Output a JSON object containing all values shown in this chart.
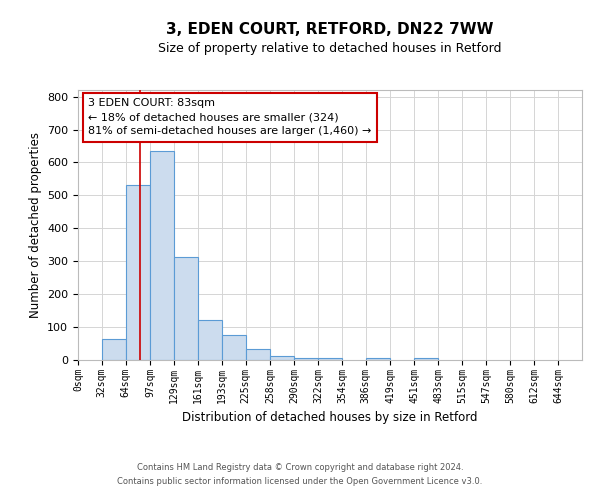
{
  "title": "3, EDEN COURT, RETFORD, DN22 7WW",
  "subtitle": "Size of property relative to detached houses in Retford",
  "xlabel": "Distribution of detached houses by size in Retford",
  "ylabel": "Number of detached properties",
  "bin_labels": [
    "0sqm",
    "32sqm",
    "64sqm",
    "97sqm",
    "129sqm",
    "161sqm",
    "193sqm",
    "225sqm",
    "258sqm",
    "290sqm",
    "322sqm",
    "354sqm",
    "386sqm",
    "419sqm",
    "451sqm",
    "483sqm",
    "515sqm",
    "547sqm",
    "580sqm",
    "612sqm",
    "644sqm"
  ],
  "bar_heights": [
    0,
    65,
    530,
    635,
    312,
    120,
    75,
    33,
    12,
    5,
    5,
    0,
    5,
    0,
    5,
    0,
    0,
    0,
    0,
    0
  ],
  "bar_color": "#ccdcee",
  "bar_edge_color": "#5b9bd5",
  "property_line_x": 83,
  "property_line_color": "#cc0000",
  "ylim": [
    0,
    820
  ],
  "yticks": [
    0,
    100,
    200,
    300,
    400,
    500,
    600,
    700,
    800
  ],
  "annotation_line1": "3 EDEN COURT: 83sqm",
  "annotation_line2": "← 18% of detached houses are smaller (324)",
  "annotation_line3": "81% of semi-detached houses are larger (1,460) →",
  "annotation_box_color": "#ffffff",
  "annotation_box_edge": "#cc0000",
  "footer1": "Contains HM Land Registry data © Crown copyright and database right 2024.",
  "footer2": "Contains public sector information licensed under the Open Government Licence v3.0.",
  "bin_edges": [
    0,
    32,
    64,
    97,
    129,
    161,
    193,
    225,
    258,
    290,
    322,
    354,
    386,
    419,
    451,
    483,
    515,
    547,
    580,
    612,
    644
  ],
  "xlim_max": 676
}
